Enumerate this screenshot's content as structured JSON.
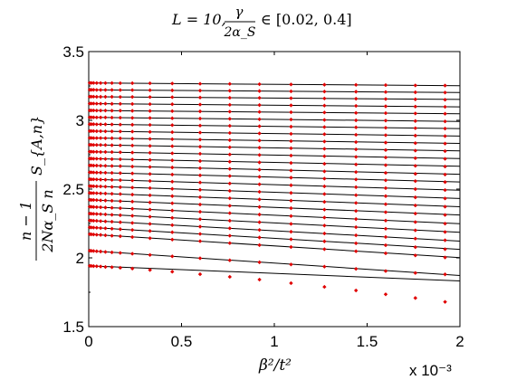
{
  "chart_data": {
    "type": "scatter",
    "title_prefix": "L = 10,",
    "title_fraction": {
      "numerator": "γ",
      "denominator": "2α_S"
    },
    "title_suffix": "∈ [0.02, 0.4]",
    "xlabel": "β²/t²",
    "ylabel": {
      "numerator": "n − 1",
      "denominator": "2Nα_S n",
      "suffix": "S_{A,n}"
    },
    "x_exponent": "x 10⁻³",
    "xlim": [
      0,
      0.002
    ],
    "ylim": [
      1.5,
      3.5
    ],
    "x_tick_labels": [
      "0",
      "0.5",
      "1",
      "1.5",
      "2"
    ],
    "y_tick_labels": [
      "1.5",
      "2",
      "2.5",
      "3",
      "3.5"
    ],
    "grid": false,
    "marker_color": "#e00000",
    "line_color": "#000000",
    "x": [
      5e-06,
      1.4e-05,
      2.6e-05,
      4.3e-05,
      6.4e-05,
      9e-05,
      0.000125,
      0.00017,
      0.000235,
      0.00033,
      0.00045,
      0.0006,
      0.00076,
      0.00092,
      0.00109,
      0.00127,
      0.00144,
      0.0016,
      0.00176,
      0.00192
    ],
    "series": [
      {
        "intercept": 3.272,
        "slope": -10,
        "values": [
          3.272,
          3.272,
          3.272,
          3.271,
          3.271,
          3.271,
          3.271,
          3.27,
          3.27,
          3.269,
          3.268,
          3.266,
          3.265,
          3.263,
          3.261,
          3.259,
          3.258,
          3.256,
          3.254,
          3.253
        ]
      },
      {
        "intercept": 3.222,
        "slope": -10,
        "values": [
          3.222,
          3.222,
          3.222,
          3.221,
          3.221,
          3.221,
          3.221,
          3.22,
          3.22,
          3.219,
          3.218,
          3.216,
          3.215,
          3.213,
          3.211,
          3.209,
          3.208,
          3.206,
          3.204,
          3.202
        ]
      },
      {
        "intercept": 3.172,
        "slope": -10,
        "values": [
          3.172,
          3.172,
          3.172,
          3.171,
          3.171,
          3.171,
          3.171,
          3.17,
          3.17,
          3.169,
          3.168,
          3.166,
          3.164,
          3.163,
          3.161,
          3.159,
          3.157,
          3.155,
          3.153,
          3.15
        ]
      },
      {
        "intercept": 3.122,
        "slope": -12,
        "values": [
          3.122,
          3.122,
          3.122,
          3.121,
          3.121,
          3.121,
          3.12,
          3.12,
          3.119,
          3.118,
          3.117,
          3.115,
          3.113,
          3.111,
          3.109,
          3.107,
          3.105,
          3.102,
          3.1,
          3.098
        ]
      },
      {
        "intercept": 3.072,
        "slope": -12,
        "values": [
          3.072,
          3.072,
          3.072,
          3.071,
          3.071,
          3.071,
          3.07,
          3.07,
          3.069,
          3.068,
          3.067,
          3.065,
          3.063,
          3.061,
          3.059,
          3.057,
          3.054,
          3.052,
          3.05,
          3.048
        ]
      },
      {
        "intercept": 3.022,
        "slope": -15,
        "values": [
          3.022,
          3.022,
          3.022,
          3.021,
          3.021,
          3.021,
          3.02,
          3.019,
          3.018,
          3.017,
          3.015,
          3.013,
          3.011,
          3.008,
          3.006,
          3.003,
          3.0,
          2.998,
          2.995,
          2.992
        ]
      },
      {
        "intercept": 2.972,
        "slope": -16,
        "values": [
          2.972,
          2.972,
          2.972,
          2.971,
          2.971,
          2.971,
          2.97,
          2.969,
          2.968,
          2.967,
          2.965,
          2.962,
          2.96,
          2.957,
          2.954,
          2.951,
          2.949,
          2.946,
          2.943,
          2.94
        ]
      },
      {
        "intercept": 2.922,
        "slope": -18,
        "values": [
          2.922,
          2.922,
          2.922,
          2.921,
          2.921,
          2.92,
          2.92,
          2.919,
          2.918,
          2.916,
          2.914,
          2.911,
          2.908,
          2.905,
          2.902,
          2.899,
          2.895,
          2.892,
          2.889,
          2.885
        ]
      },
      {
        "intercept": 2.872,
        "slope": -20,
        "values": [
          2.872,
          2.872,
          2.871,
          2.871,
          2.871,
          2.87,
          2.87,
          2.869,
          2.867,
          2.865,
          2.863,
          2.86,
          2.856,
          2.853,
          2.849,
          2.846,
          2.842,
          2.838,
          2.834,
          2.831
        ]
      },
      {
        "intercept": 2.822,
        "slope": -22,
        "values": [
          2.822,
          2.822,
          2.821,
          2.821,
          2.821,
          2.82,
          2.819,
          2.818,
          2.817,
          2.814,
          2.812,
          2.808,
          2.804,
          2.801,
          2.797,
          2.793,
          2.789,
          2.784,
          2.78,
          2.776
        ]
      },
      {
        "intercept": 2.772,
        "slope": -25,
        "values": [
          2.772,
          2.772,
          2.771,
          2.771,
          2.77,
          2.77,
          2.769,
          2.768,
          2.766,
          2.764,
          2.76,
          2.757,
          2.752,
          2.748,
          2.744,
          2.739,
          2.734,
          2.73,
          2.725,
          2.72
        ]
      },
      {
        "intercept": 2.722,
        "slope": -28,
        "values": [
          2.722,
          2.722,
          2.721,
          2.721,
          2.72,
          2.719,
          2.718,
          2.717,
          2.715,
          2.712,
          2.709,
          2.704,
          2.699,
          2.694,
          2.69,
          2.684,
          2.679,
          2.674,
          2.669,
          2.664
        ]
      },
      {
        "intercept": 2.672,
        "slope": -32,
        "values": [
          2.672,
          2.672,
          2.671,
          2.671,
          2.67,
          2.669,
          2.668,
          2.667,
          2.664,
          2.661,
          2.657,
          2.652,
          2.647,
          2.641,
          2.635,
          2.629,
          2.624,
          2.618,
          2.611,
          2.606
        ]
      },
      {
        "intercept": 2.622,
        "slope": -35,
        "values": [
          2.622,
          2.622,
          2.621,
          2.62,
          2.62,
          2.619,
          2.618,
          2.616,
          2.614,
          2.61,
          2.606,
          2.6,
          2.595,
          2.589,
          2.583,
          2.576,
          2.57,
          2.564,
          2.558,
          2.551
        ]
      },
      {
        "intercept": 2.572,
        "slope": -40,
        "values": [
          2.572,
          2.571,
          2.571,
          2.57,
          2.569,
          2.568,
          2.567,
          2.565,
          2.563,
          2.559,
          2.554,
          2.548,
          2.541,
          2.535,
          2.528,
          2.52,
          2.514,
          2.507,
          2.5,
          2.493
        ]
      },
      {
        "intercept": 2.522,
        "slope": -45,
        "values": [
          2.522,
          2.521,
          2.521,
          2.52,
          2.519,
          2.518,
          2.516,
          2.514,
          2.511,
          2.507,
          2.502,
          2.495,
          2.487,
          2.48,
          2.472,
          2.464,
          2.456,
          2.449,
          2.44,
          2.432
        ]
      },
      {
        "intercept": 2.472,
        "slope": -50,
        "values": [
          2.472,
          2.471,
          2.471,
          2.47,
          2.469,
          2.468,
          2.466,
          2.464,
          2.46,
          2.455,
          2.449,
          2.441,
          2.433,
          2.425,
          2.416,
          2.407,
          2.399,
          2.39,
          2.381,
          2.372
        ]
      },
      {
        "intercept": 2.422,
        "slope": -55,
        "values": [
          2.422,
          2.421,
          2.421,
          2.42,
          2.418,
          2.417,
          2.415,
          2.412,
          2.409,
          2.403,
          2.397,
          2.388,
          2.379,
          2.37,
          2.361,
          2.351,
          2.341,
          2.332,
          2.322,
          2.312
        ]
      },
      {
        "intercept": 2.372,
        "slope": -62,
        "values": [
          2.372,
          2.371,
          2.37,
          2.369,
          2.368,
          2.366,
          2.364,
          2.361,
          2.357,
          2.351,
          2.344,
          2.335,
          2.325,
          2.315,
          2.304,
          2.293,
          2.282,
          2.271,
          2.26,
          2.249
        ]
      },
      {
        "intercept": 2.322,
        "slope": -68,
        "values": [
          2.322,
          2.321,
          2.32,
          2.319,
          2.318,
          2.316,
          2.313,
          2.31,
          2.306,
          2.299,
          2.291,
          2.281,
          2.27,
          2.259,
          2.247,
          2.235,
          2.223,
          2.212,
          2.2,
          2.188
        ]
      },
      {
        "intercept": 2.272,
        "slope": -75,
        "values": [
          2.272,
          2.271,
          2.27,
          2.269,
          2.267,
          2.265,
          2.263,
          2.259,
          2.254,
          2.247,
          2.238,
          2.227,
          2.215,
          2.203,
          2.19,
          2.177,
          2.164,
          2.152,
          2.14,
          2.128
        ]
      },
      {
        "intercept": 2.222,
        "slope": -80,
        "values": [
          2.222,
          2.221,
          2.22,
          2.219,
          2.217,
          2.215,
          2.212,
          2.208,
          2.203,
          2.195,
          2.186,
          2.174,
          2.161,
          2.148,
          2.135,
          2.12,
          2.106,
          2.092,
          2.078,
          2.063
        ]
      },
      {
        "intercept": 2.172,
        "slope": -85,
        "values": [
          2.172,
          2.171,
          2.17,
          2.168,
          2.167,
          2.164,
          2.161,
          2.157,
          2.151,
          2.143,
          2.133,
          2.121,
          2.107,
          2.093,
          2.079,
          2.063,
          2.048,
          2.033,
          2.018,
          2.003
        ]
      },
      {
        "intercept": 2.052,
        "slope": -90,
        "values": [
          2.052,
          2.051,
          2.05,
          2.048,
          2.046,
          2.043,
          2.04,
          2.036,
          2.03,
          2.021,
          2.011,
          1.997,
          1.982,
          1.968,
          1.952,
          1.936,
          1.92,
          1.904,
          1.89,
          1.88
        ]
      },
      {
        "intercept": 1.942,
        "slope": -55,
        "values": [
          1.942,
          1.941,
          1.94,
          1.939,
          1.937,
          1.934,
          1.932,
          1.928,
          1.922,
          1.912,
          1.899,
          1.881,
          1.862,
          1.842,
          1.816,
          1.789,
          1.763,
          1.735,
          1.708,
          1.68
        ]
      }
    ]
  }
}
